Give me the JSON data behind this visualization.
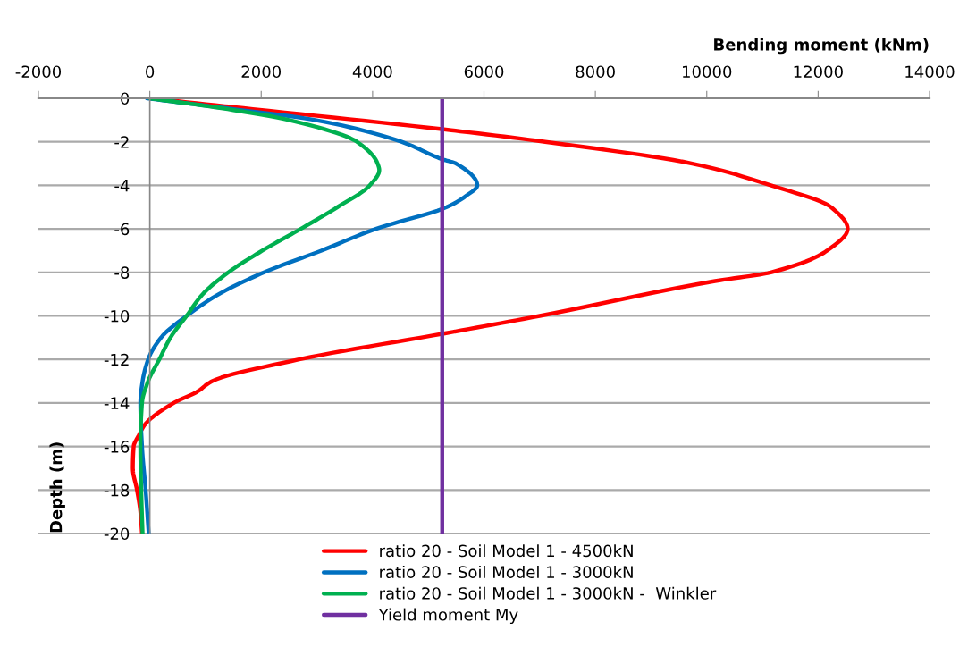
{
  "chart_data": {
    "type": "line",
    "xlabel": "Bending moment (kNm)",
    "ylabel": "Depth (m)",
    "xlim": [
      -2000,
      14000
    ],
    "xticks": [
      -2000,
      0,
      2000,
      4000,
      6000,
      8000,
      10000,
      12000,
      14000
    ],
    "ylim": [
      -20,
      0
    ],
    "yticks": [
      0,
      -2,
      -4,
      -6,
      -8,
      -10,
      -12,
      -14,
      -16,
      -18,
      -20
    ],
    "grid": "y",
    "legend": "bottom",
    "line_style": "solid",
    "marker": "none",
    "series": [
      {
        "name": "ratio 20 - Soil Model 1 - 4500kN",
        "color": "#ff0000",
        "x": [
          0,
          1850,
          5250,
          7100,
          9740,
          11150,
          12230,
          12530,
          12160,
          11150,
          10150,
          7000,
          5300,
          2680,
          1120,
          840,
          430,
          -90,
          -200,
          -290,
          -305,
          -230,
          -170,
          -140
        ],
        "values": [
          0,
          -0.5,
          -1.42,
          -2,
          -3,
          -4,
          -5,
          -6,
          -7,
          -8,
          -8.4,
          -10,
          -10.8,
          -12,
          -13,
          -13.5,
          -14,
          -15,
          -15.5,
          -16,
          -17,
          -18,
          -19,
          -20
        ]
      },
      {
        "name": "ratio 20 - Soil Model 1 - 3000kN",
        "color": "#0070c0",
        "x": [
          -50,
          1500,
          2970,
          4520,
          5250,
          5500,
          5880,
          5670,
          5330,
          4060,
          3080,
          2050,
          1240,
          660,
          200,
          -30,
          -130,
          -170,
          -140,
          -75,
          -20
        ],
        "values": [
          0,
          -0.5,
          -1,
          -2,
          -2.8,
          -3,
          -4,
          -4.5,
          -5,
          -6,
          -7,
          -8,
          -9,
          -10,
          -11,
          -12,
          -13,
          -14,
          -16,
          -18,
          -20
        ]
      },
      {
        "name": "ratio 20 - Soil Model 1 - 3000kN -  Winkler",
        "color": "#00b050",
        "x": [
          0,
          1400,
          2500,
          3720,
          4090,
          4120,
          3950,
          3370,
          2710,
          2020,
          1410,
          950,
          660,
          370,
          170,
          -30,
          -140,
          -170,
          -155,
          -130
        ],
        "values": [
          0,
          -0.5,
          -1,
          -2,
          -3,
          -3.3,
          -4,
          -5,
          -6,
          -7,
          -8,
          -9,
          -10,
          -11,
          -12,
          -13,
          -14,
          -16,
          -18,
          -20
        ]
      },
      {
        "name": "Yield moment My",
        "color": "#7030a0",
        "x": [
          5250,
          5250
        ],
        "values": [
          0,
          -20
        ]
      }
    ]
  }
}
